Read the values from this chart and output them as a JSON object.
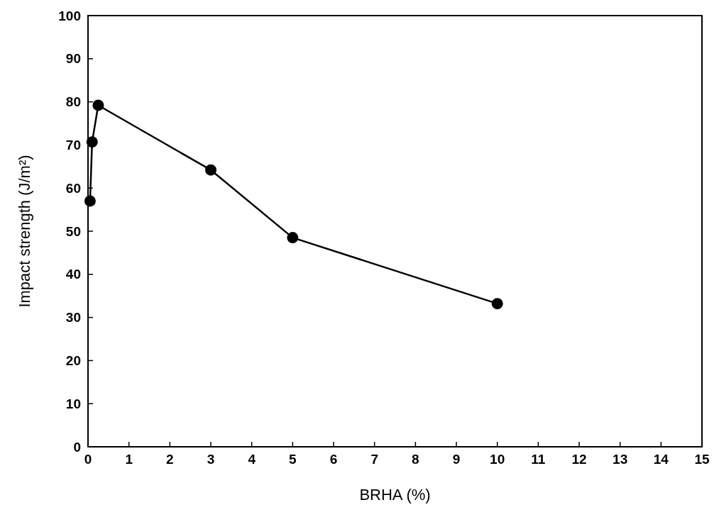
{
  "chart_data": {
    "type": "line",
    "xlabel": "BRHA (%)",
    "ylabel": "Impact strength (J/m²)",
    "x": [
      0.05,
      0.1,
      0.25,
      3,
      5,
      10
    ],
    "series": [
      {
        "color": "#000000",
        "values": [
          57,
          70.7,
          79.2,
          64.2,
          48.5,
          33.2
        ]
      }
    ],
    "xlim": [
      0,
      15
    ],
    "xticks": [
      0,
      1,
      2,
      3,
      4,
      5,
      6,
      7,
      8,
      9,
      10,
      11,
      12,
      13,
      14,
      15
    ],
    "ylim": [
      0,
      100
    ],
    "yticks": [
      0,
      10,
      20,
      30,
      40,
      50,
      60,
      70,
      80,
      90,
      100
    ],
    "grid": false,
    "marker": "circle",
    "line_style": "solid"
  }
}
